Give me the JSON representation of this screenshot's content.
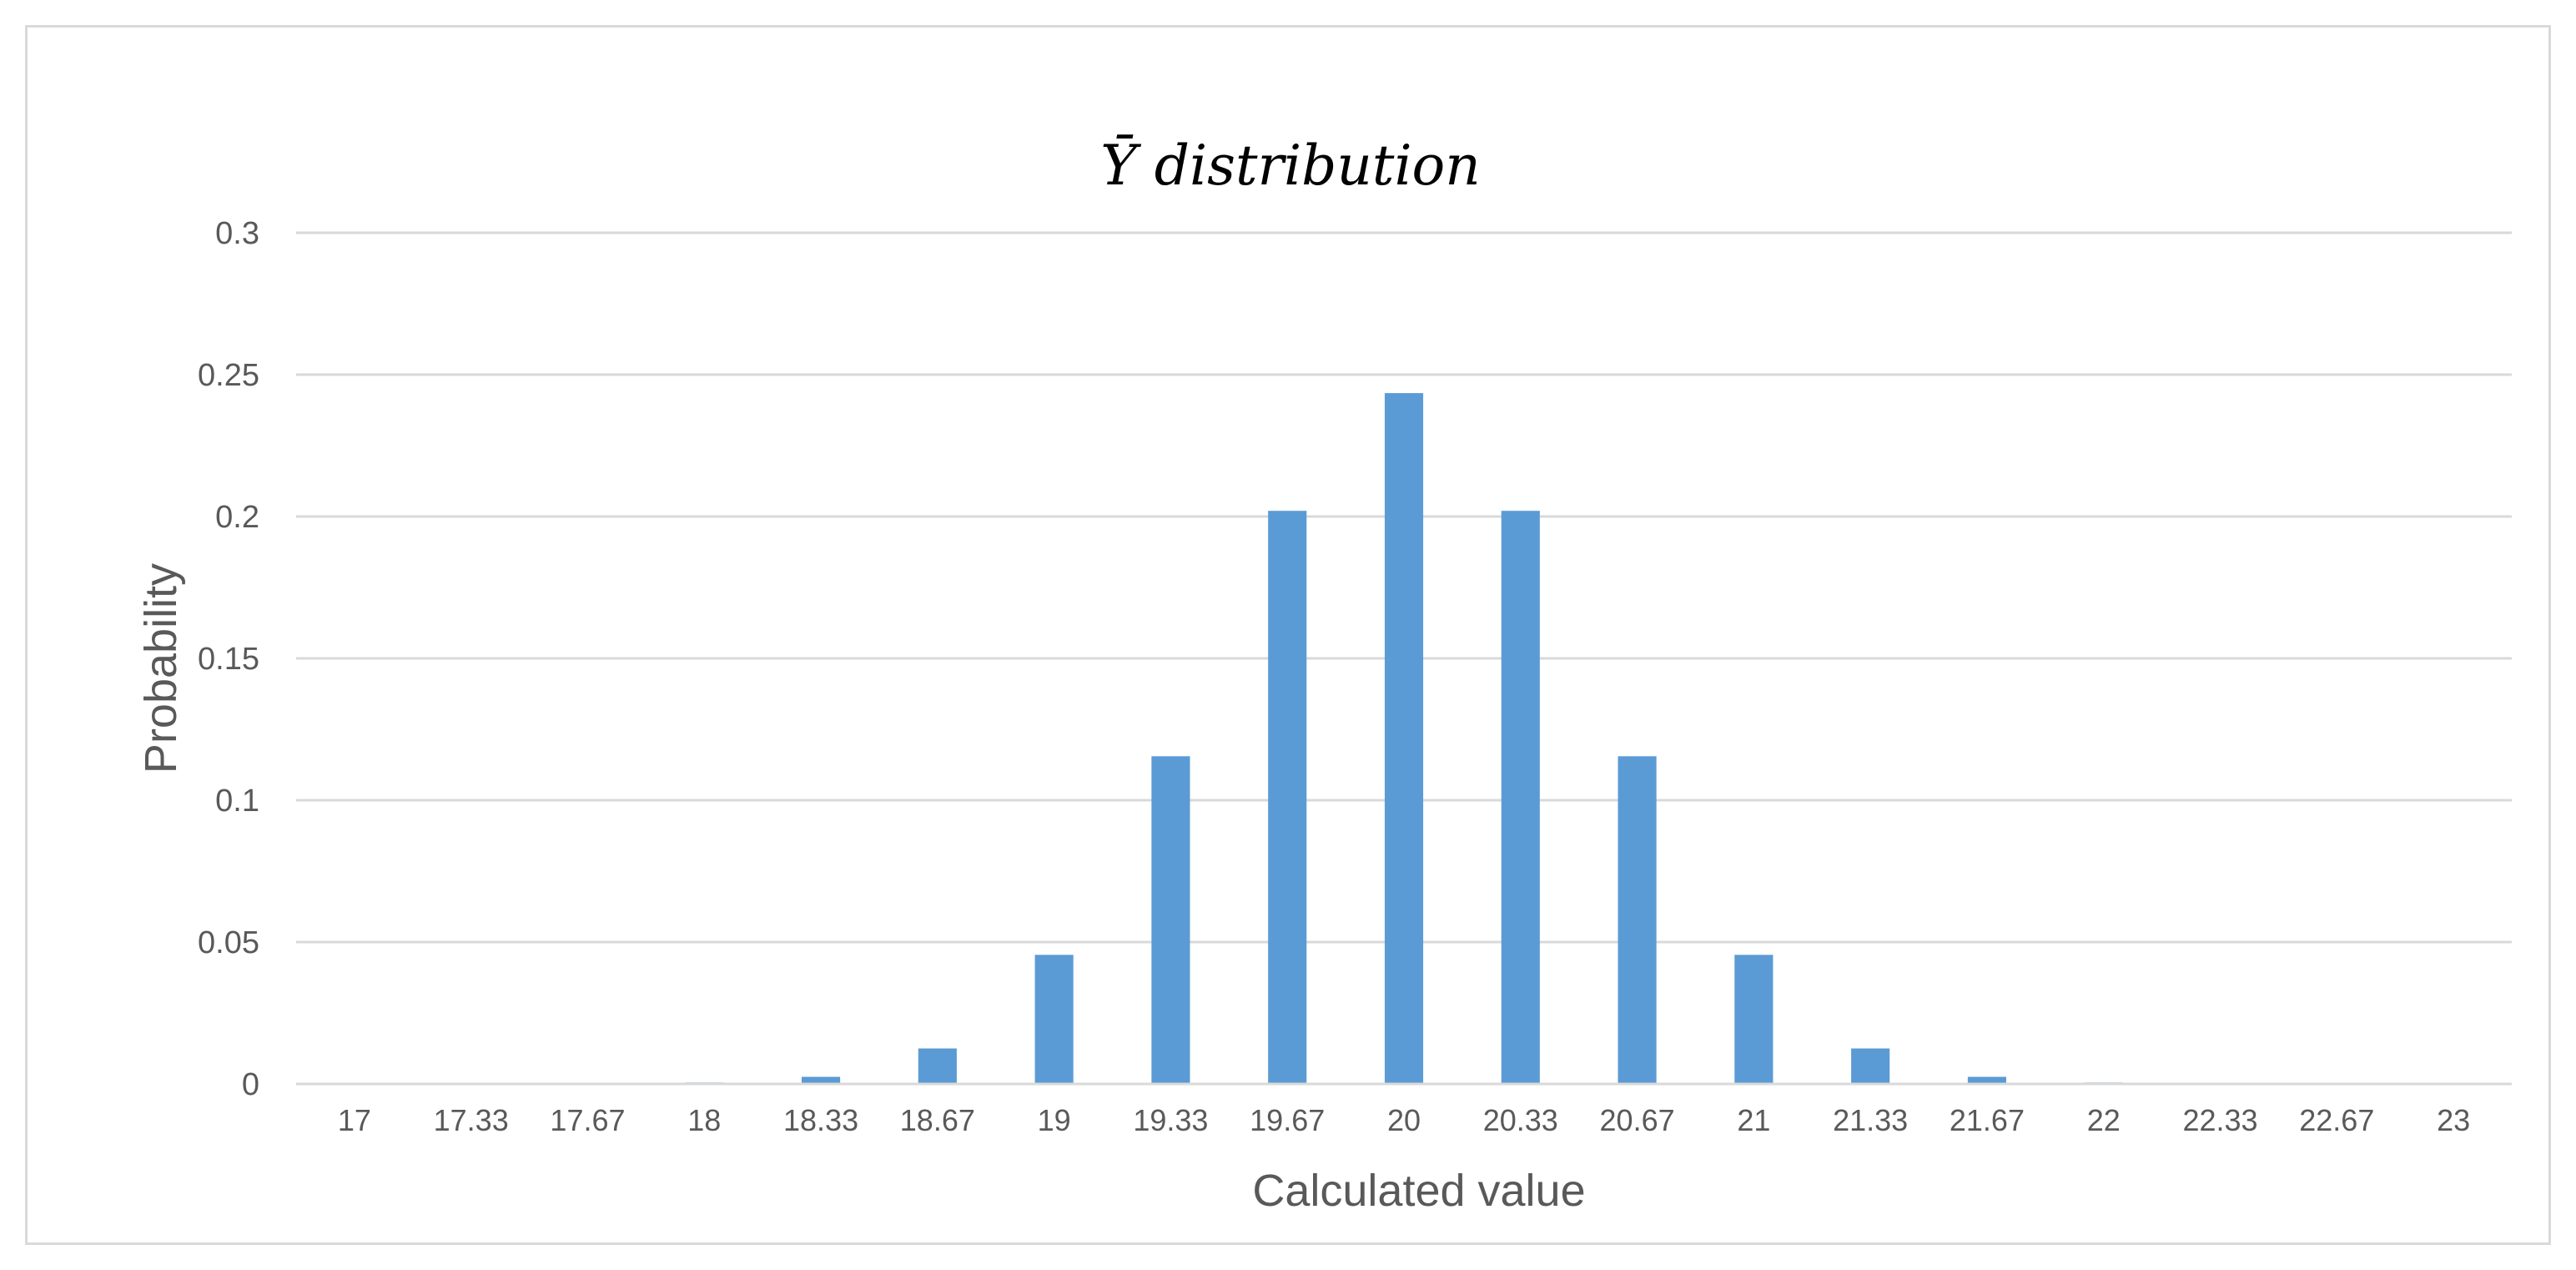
{
  "chart_data": {
    "type": "bar",
    "title": "Ȳ distribution",
    "xlabel": "Calculated value",
    "ylabel": "Probability",
    "categories": [
      "17",
      "17.33",
      "17.67",
      "18",
      "18.33",
      "18.67",
      "19",
      "19.33",
      "19.67",
      "20",
      "20.33",
      "20.67",
      "21",
      "21.33",
      "21.67",
      "22",
      "22.33",
      "22.67",
      "23"
    ],
    "values": [
      0,
      0,
      0,
      0.0005,
      0.0025,
      0.0125,
      0.0455,
      0.1155,
      0.202,
      0.2435,
      0.202,
      0.1155,
      0.0455,
      0.0125,
      0.0025,
      0.0005,
      0,
      0,
      0
    ],
    "ylim": [
      0,
      0.3
    ],
    "yticks": [
      "0",
      "0.05",
      "0.1",
      "0.15",
      "0.2",
      "0.25",
      "0.3"
    ],
    "ytick_values": [
      0,
      0.05,
      0.1,
      0.15,
      0.2,
      0.25,
      0.3
    ],
    "grid": true,
    "legend": "none",
    "colors": {
      "bar": "#5b9bd5",
      "grid": "#d9d9d9",
      "axis": "#d9d9d9",
      "text": "#595959"
    }
  }
}
